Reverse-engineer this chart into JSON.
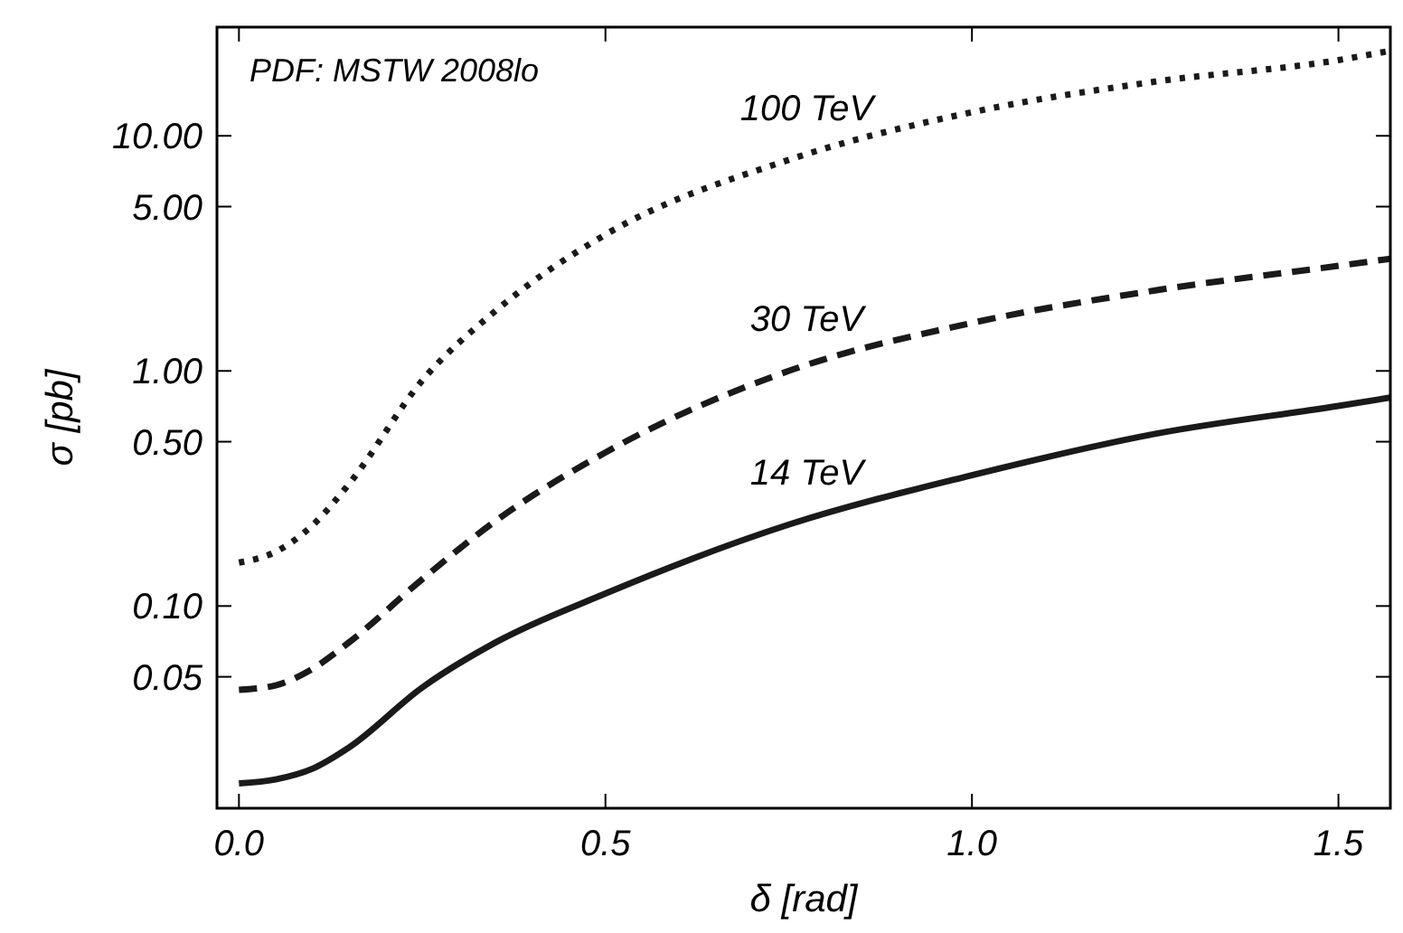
{
  "chart_data": {
    "type": "line",
    "xlabel": "δ [rad]",
    "ylabel": "σ [pb]",
    "log": "y",
    "grid": false,
    "xlim": [
      -0.03,
      1.5708
    ],
    "ylim": [
      0.0138,
      29
    ],
    "xticks": [
      {
        "value": 0,
        "label": "0.0"
      },
      {
        "value": 0.5,
        "label": "0.5"
      },
      {
        "value": 1,
        "label": "1.0"
      },
      {
        "value": 1.5,
        "label": "1.5"
      }
    ],
    "yticks": [
      {
        "value": 0.05,
        "label": "0.05"
      },
      {
        "value": 0.1,
        "label": "0.10"
      },
      {
        "value": 0.5,
        "label": "0.50"
      },
      {
        "value": 1,
        "label": "1.00"
      },
      {
        "value": 5,
        "label": "5.00"
      },
      {
        "value": 10,
        "label": "10.00"
      }
    ],
    "x": [
      0,
      0.05,
      0.1,
      0.15,
      0.25,
      0.35,
      0.5,
      0.75,
      1.0,
      1.25,
      1.5,
      1.5708
    ],
    "series": [
      {
        "name": "14 TeV",
        "color": "#1a1a1a",
        "line_style": "solid",
        "values": [
          0.0176,
          0.0183,
          0.0203,
          0.025,
          0.045,
          0.07,
          0.113,
          0.222,
          0.36,
          0.54,
          0.71,
          0.77
        ]
      },
      {
        "name": "30 TeV",
        "color": "#1a1a1a",
        "line_style": "dashed",
        "values": [
          0.044,
          0.046,
          0.054,
          0.07,
          0.13,
          0.23,
          0.45,
          1.0,
          1.6,
          2.2,
          2.8,
          3.0
        ]
      },
      {
        "name": "100 TeV",
        "color": "#1a1a1a",
        "line_style": "dotted",
        "values": [
          0.153,
          0.17,
          0.22,
          0.33,
          0.91,
          1.8,
          3.8,
          7.9,
          12.6,
          17,
          21,
          23
        ]
      }
    ],
    "annotations": [
      "PDF: MSTW 2008lo"
    ]
  }
}
